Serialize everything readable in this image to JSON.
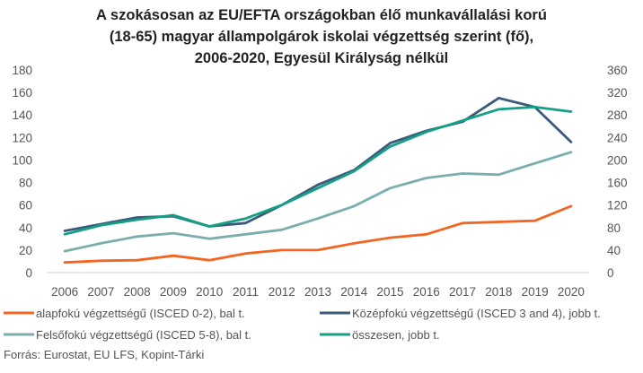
{
  "chart_data": {
    "type": "line",
    "title": [
      "A szokásosan az EU/EFTA országokban élő munkavállalási korú",
      "(18-65) magyar állampolgárok iskolai végzettség szerint (fő),",
      "2006-2020, Egyesül Királyság nélkül"
    ],
    "x": [
      "2006",
      "2007",
      "2008",
      "2009",
      "2010",
      "2011",
      "2012",
      "2013",
      "2014",
      "2015",
      "2016",
      "2017",
      "2018",
      "2019",
      "2020"
    ],
    "y_left": {
      "ylim": [
        0,
        180
      ],
      "ticks": [
        "0",
        "20",
        "40",
        "60",
        "80",
        "100",
        "120",
        "140",
        "160",
        "180"
      ]
    },
    "y_right": {
      "ylim": [
        0,
        360
      ],
      "ticks": [
        "0",
        "40",
        "80",
        "120",
        "160",
        "200",
        "240",
        "280",
        "320",
        "360"
      ]
    },
    "series": [
      {
        "name": "alapfokú végzettségű (ISCED 0-2), bal t.",
        "axis": "left",
        "color": "#f26522",
        "values": [
          9,
          10.5,
          11,
          15,
          11,
          17,
          20,
          20,
          26,
          31,
          34,
          44,
          45,
          46,
          59
        ]
      },
      {
        "name": "Középfokú  végzettségű (ISCED 3 and 4), jobb t.",
        "axis": "right",
        "color": "#3c5a7c",
        "values": [
          74,
          86,
          98,
          100,
          82,
          88,
          120,
          156,
          182,
          230,
          252,
          268,
          310,
          294,
          232
        ]
      },
      {
        "name": "Felsőfokú végzettségű (ISCED 5-8), bal t.",
        "axis": "left",
        "color": "#7aadad",
        "values": [
          19,
          26,
          32,
          35,
          30,
          34,
          38,
          48,
          59,
          75,
          84,
          88,
          87,
          97,
          107
        ]
      },
      {
        "name": "összesen, jobb t.",
        "axis": "right",
        "color": "#13a085",
        "values": [
          68,
          84,
          94,
          102,
          82,
          96,
          120,
          150,
          180,
          224,
          250,
          270,
          290,
          294,
          286
        ]
      }
    ],
    "legend_placement": "bottom",
    "grid": false,
    "source": "Forrás: Eurostat, EU LFS, Kopint-Tárki"
  }
}
